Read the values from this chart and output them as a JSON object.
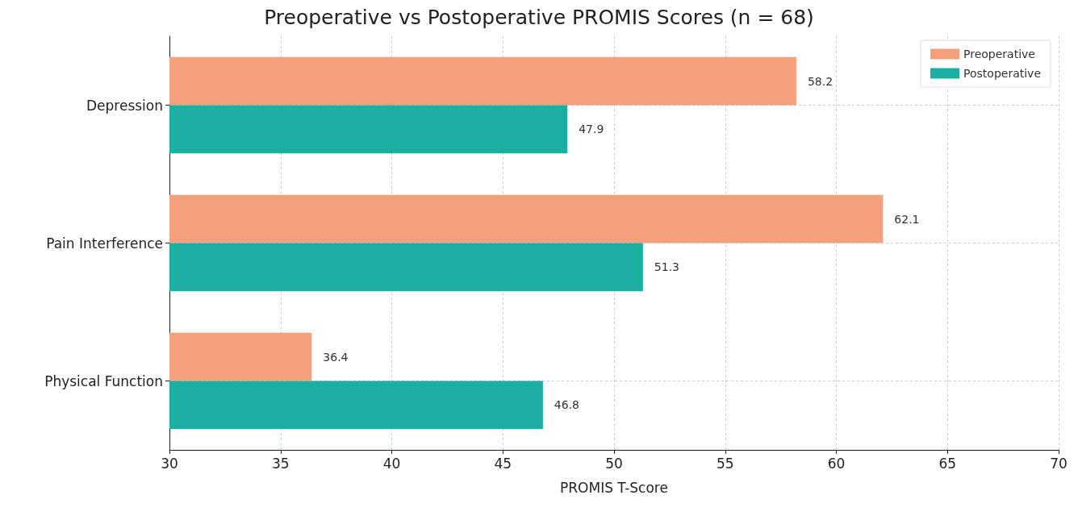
{
  "chart_data": {
    "type": "bar",
    "orientation": "horizontal",
    "title": "Preoperative vs Postoperative PROMIS Scores (n = 68)",
    "xlabel": "PROMIS T-Score",
    "categories": [
      "Depression",
      "Pain Interference",
      "Physical Function"
    ],
    "series": [
      {
        "name": "Preoperative",
        "color": "#f4a07c",
        "values": [
          58.2,
          62.1,
          36.4
        ]
      },
      {
        "name": "Postoperative",
        "color": "#1aafa2",
        "values": [
          47.9,
          51.3,
          46.8
        ]
      }
    ],
    "xlim": [
      30,
      70
    ],
    "xticks": [
      30,
      35,
      40,
      45,
      50,
      55,
      60,
      65,
      70
    ],
    "grid": true,
    "legend": "top right",
    "data_labels": true
  }
}
